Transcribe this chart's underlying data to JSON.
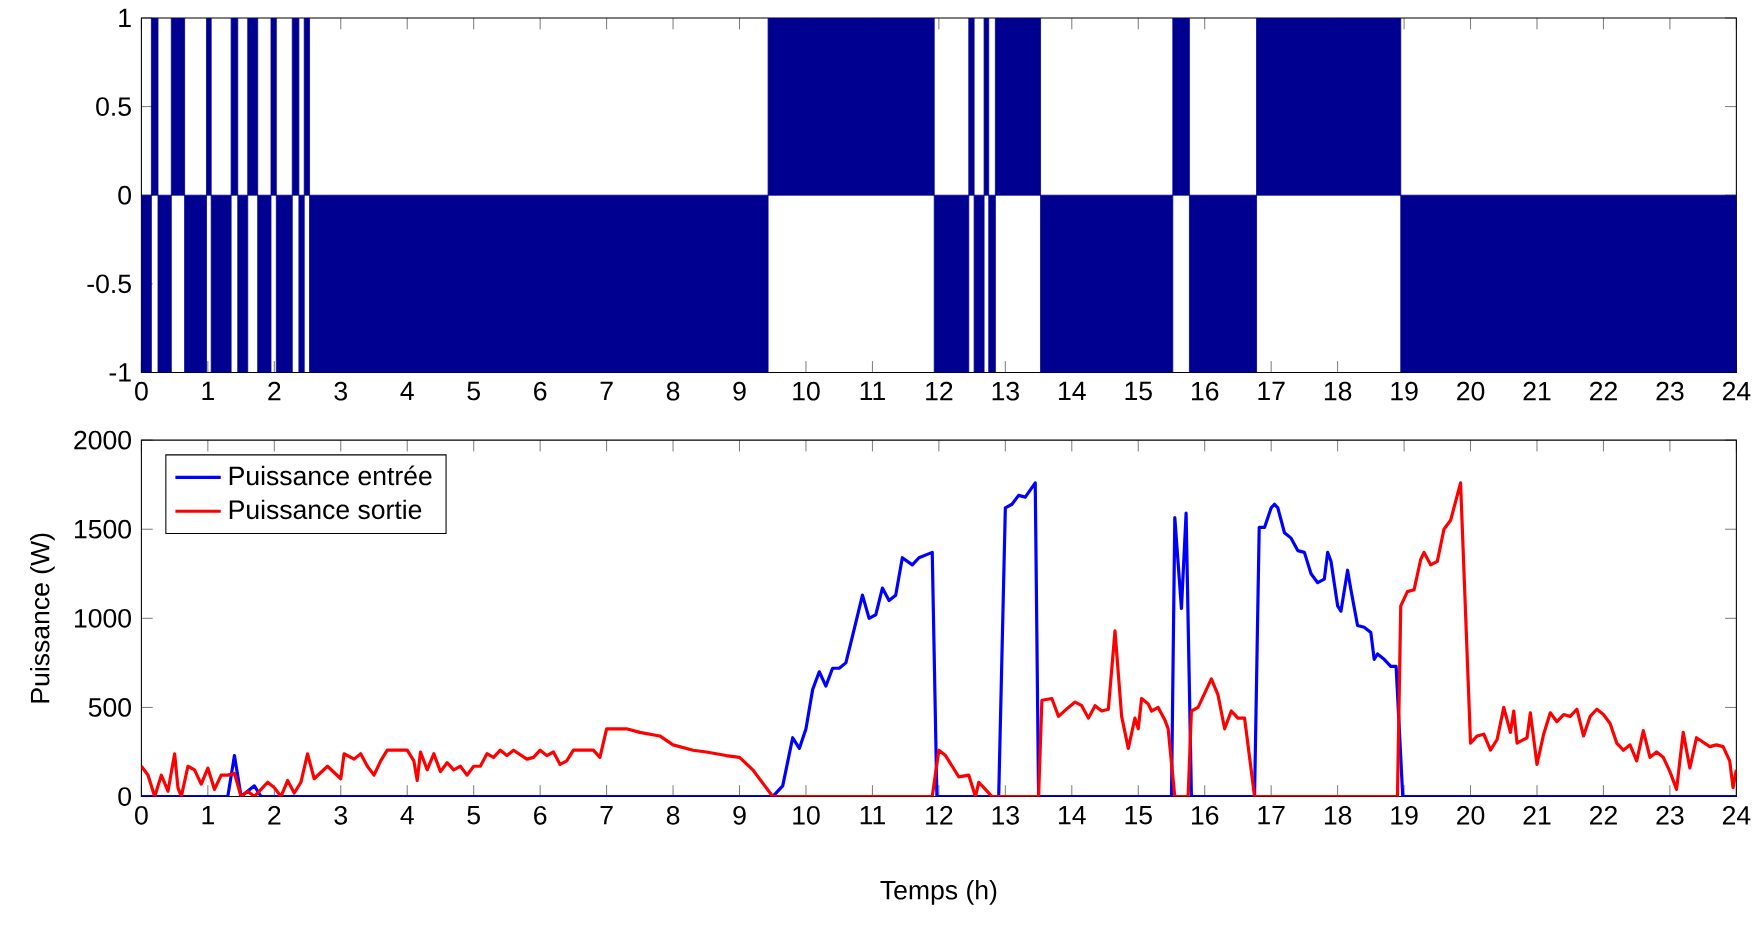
{
  "chart_data": [
    {
      "type": "area",
      "xlim": [
        0,
        24
      ],
      "ylim": [
        -1,
        1
      ],
      "xticks": [
        0,
        1,
        2,
        3,
        4,
        5,
        6,
        7,
        8,
        9,
        10,
        11,
        12,
        13,
        14,
        15,
        16,
        17,
        18,
        19,
        20,
        21,
        22,
        23,
        24
      ],
      "yticks": [
        -1,
        -0.5,
        0,
        0.5,
        1
      ],
      "grid": false,
      "legend": false,
      "series": [
        {
          "color": "#000090",
          "x": [
            0,
            0.15,
            0.15,
            0.25,
            0.25,
            0.45,
            0.45,
            0.65,
            0.65,
            0.98,
            0.98,
            1.05,
            1.05,
            1.35,
            1.35,
            1.45,
            1.45,
            1.6,
            1.6,
            1.75,
            1.75,
            1.95,
            1.95,
            2.03,
            2.03,
            2.27,
            2.27,
            2.37,
            2.37,
            2.45,
            2.45,
            2.53,
            2.53,
            9.43,
            9.43,
            11.93,
            11.93,
            12.45,
            12.45,
            12.53,
            12.53,
            12.68,
            12.68,
            12.75,
            12.75,
            12.85,
            12.85,
            13.53,
            13.53,
            15.52,
            15.52,
            15.77,
            15.77,
            16.78,
            16.78,
            18.95,
            18.95,
            24
          ],
          "values": [
            -1,
            -1,
            1,
            1,
            -1,
            -1,
            1,
            1,
            -1,
            -1,
            1,
            1,
            -1,
            -1,
            1,
            1,
            -1,
            -1,
            1,
            1,
            -1,
            -1,
            1,
            1,
            -1,
            -1,
            1,
            1,
            -1,
            -1,
            1,
            1,
            -1,
            -1,
            1,
            1,
            -1,
            -1,
            1,
            1,
            -1,
            -1,
            1,
            1,
            -1,
            -1,
            1,
            1,
            -1,
            -1,
            1,
            1,
            -1,
            -1,
            1,
            1,
            -1,
            -1
          ]
        }
      ]
    },
    {
      "type": "line",
      "xlabel": "Temps (h)",
      "ylabel": "Puissance (W)",
      "xlim": [
        0,
        24
      ],
      "ylim": [
        0,
        2000
      ],
      "xticks": [
        0,
        1,
        2,
        3,
        4,
        5,
        6,
        7,
        8,
        9,
        10,
        11,
        12,
        13,
        14,
        15,
        16,
        17,
        18,
        19,
        20,
        21,
        22,
        23,
        24
      ],
      "yticks": [
        0,
        500,
        1000,
        1500,
        2000
      ],
      "grid": false,
      "legend": "top left",
      "series": [
        {
          "name": "Puissance entrée",
          "color": "#0000ff",
          "x": [
            0,
            1.3,
            1.4,
            1.5,
            1.7,
            1.8,
            9.5,
            9.65,
            9.8,
            9.9,
            10.0,
            10.1,
            10.2,
            10.3,
            10.4,
            10.5,
            10.6,
            10.7,
            10.85,
            10.95,
            11.05,
            11.15,
            11.25,
            11.35,
            11.45,
            11.6,
            11.7,
            11.9,
            11.97,
            12.9,
            13.0,
            13.1,
            13.2,
            13.3,
            13.45,
            13.5,
            15.5,
            15.55,
            15.65,
            15.72,
            15.8,
            16.75,
            16.82,
            16.9,
            17.0,
            17.05,
            17.1,
            17.2,
            17.3,
            17.4,
            17.5,
            17.6,
            17.7,
            17.8,
            17.85,
            17.9,
            18.0,
            18.05,
            18.15,
            18.2,
            18.3,
            18.4,
            18.5,
            18.55,
            18.6,
            18.7,
            18.8,
            18.88,
            18.98,
            24
          ],
          "values": [
            0,
            0,
            230,
            0,
            60,
            0,
            0,
            60,
            330,
            270,
            380,
            600,
            700,
            620,
            720,
            720,
            750,
            900,
            1130,
            1000,
            1020,
            1170,
            1100,
            1130,
            1340,
            1300,
            1340,
            1370,
            0,
            0,
            1620,
            1640,
            1690,
            1680,
            1760,
            0,
            0,
            1565,
            1055,
            1590,
            0,
            0,
            1510,
            1510,
            1620,
            1640,
            1620,
            1480,
            1450,
            1380,
            1370,
            1250,
            1200,
            1220,
            1370,
            1320,
            1070,
            1040,
            1270,
            1160,
            960,
            950,
            920,
            770,
            800,
            770,
            730,
            730,
            0,
            0
          ]
        },
        {
          "name": "Puissance sortie",
          "color": "#ff0000",
          "x": [
            0,
            0.1,
            0.2,
            0.3,
            0.4,
            0.5,
            0.55,
            0.6,
            0.7,
            0.8,
            0.9,
            1.0,
            1.1,
            1.2,
            1.3,
            1.4,
            1.5,
            1.6,
            1.7,
            1.9,
            2.0,
            2.1,
            2.2,
            2.3,
            2.4,
            2.5,
            2.6,
            2.8,
            3.0,
            3.05,
            3.2,
            3.3,
            3.4,
            3.5,
            3.6,
            3.7,
            4.0,
            4.1,
            4.15,
            4.2,
            4.3,
            4.4,
            4.5,
            4.6,
            4.7,
            4.8,
            4.9,
            5.0,
            5.1,
            5.2,
            5.3,
            5.4,
            5.5,
            5.6,
            5.8,
            5.9,
            6.0,
            6.1,
            6.2,
            6.3,
            6.4,
            6.5,
            6.8,
            6.9,
            7.0,
            7.3,
            7.5,
            7.8,
            8.0,
            8.3,
            8.5,
            8.8,
            9.0,
            9.2,
            9.5,
            11.9,
            12.0,
            12.1,
            12.2,
            12.3,
            12.45,
            12.55,
            12.6,
            12.7,
            12.8,
            13.5,
            13.55,
            13.7,
            13.8,
            13.95,
            14.05,
            14.15,
            14.25,
            14.35,
            14.45,
            14.55,
            14.65,
            14.75,
            14.85,
            14.95,
            15.0,
            15.05,
            15.15,
            15.2,
            15.3,
            15.4,
            15.45,
            15.55,
            15.75,
            15.8,
            15.9,
            16.0,
            16.1,
            16.2,
            16.3,
            16.4,
            16.5,
            16.6,
            16.75,
            18.9,
            18.95,
            19.05,
            19.15,
            19.25,
            19.3,
            19.4,
            19.5,
            19.6,
            19.7,
            19.85,
            20.0,
            20.1,
            20.2,
            20.3,
            20.4,
            20.5,
            20.6,
            20.65,
            20.7,
            20.85,
            20.9,
            21.0,
            21.1,
            21.2,
            21.3,
            21.4,
            21.5,
            21.6,
            21.7,
            21.8,
            21.9,
            22.0,
            22.1,
            22.2,
            22.3,
            22.4,
            22.5,
            22.6,
            22.7,
            22.8,
            22.9,
            23.0,
            23.1,
            23.2,
            23.3,
            23.4,
            23.6,
            23.7,
            23.8,
            23.9,
            23.95,
            24.0
          ],
          "values": [
            170,
            120,
            0,
            120,
            30,
            240,
            50,
            0,
            170,
            150,
            70,
            160,
            40,
            120,
            120,
            130,
            0,
            30,
            0,
            80,
            50,
            0,
            90,
            20,
            80,
            240,
            100,
            170,
            100,
            240,
            210,
            240,
            170,
            120,
            200,
            260,
            260,
            200,
            90,
            250,
            150,
            240,
            140,
            190,
            150,
            170,
            120,
            170,
            170,
            240,
            220,
            260,
            230,
            260,
            210,
            220,
            260,
            230,
            250,
            180,
            200,
            260,
            260,
            220,
            380,
            380,
            360,
            340,
            290,
            260,
            250,
            230,
            220,
            150,
            0,
            0,
            260,
            230,
            170,
            110,
            120,
            0,
            80,
            40,
            0,
            0,
            540,
            550,
            450,
            500,
            530,
            510,
            440,
            510,
            480,
            490,
            930,
            450,
            270,
            440,
            380,
            550,
            520,
            480,
            500,
            430,
            380,
            0,
            0,
            480,
            500,
            580,
            660,
            570,
            380,
            480,
            440,
            440,
            0,
            0,
            1070,
            1150,
            1160,
            1330,
            1370,
            1300,
            1320,
            1500,
            1550,
            1760,
            300,
            340,
            350,
            260,
            320,
            500,
            360,
            480,
            300,
            330,
            470,
            180,
            350,
            470,
            420,
            460,
            450,
            490,
            340,
            450,
            490,
            460,
            410,
            300,
            260,
            290,
            200,
            370,
            220,
            250,
            220,
            140,
            40,
            360,
            160,
            330,
            280,
            290,
            280,
            200,
            50,
            150
          ]
        }
      ]
    }
  ]
}
